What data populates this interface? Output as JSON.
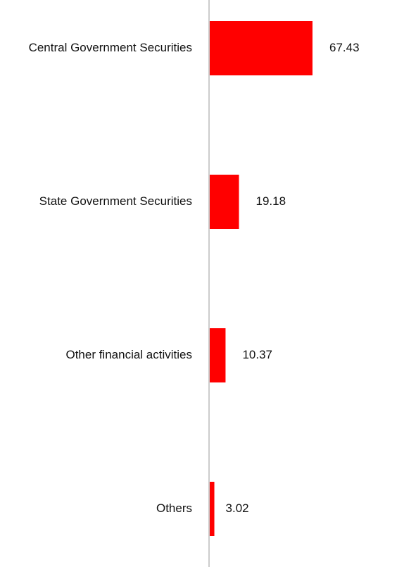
{
  "chart_data": {
    "type": "bar",
    "orientation": "horizontal",
    "categories": [
      "Central Government Securities",
      "State Government Securities",
      "Other financial activities",
      "Others"
    ],
    "values": [
      67.43,
      19.18,
      10.37,
      3.02
    ],
    "value_labels": [
      "67.43",
      "19.18",
      "10.37",
      "3.02"
    ],
    "title": "",
    "xlabel": "",
    "ylabel": "",
    "xlim": [
      0,
      100
    ],
    "grid": false,
    "legend": "none",
    "colors": {
      "bar": "#ff0000",
      "axis": "#cccccc",
      "text": "#111111"
    }
  }
}
